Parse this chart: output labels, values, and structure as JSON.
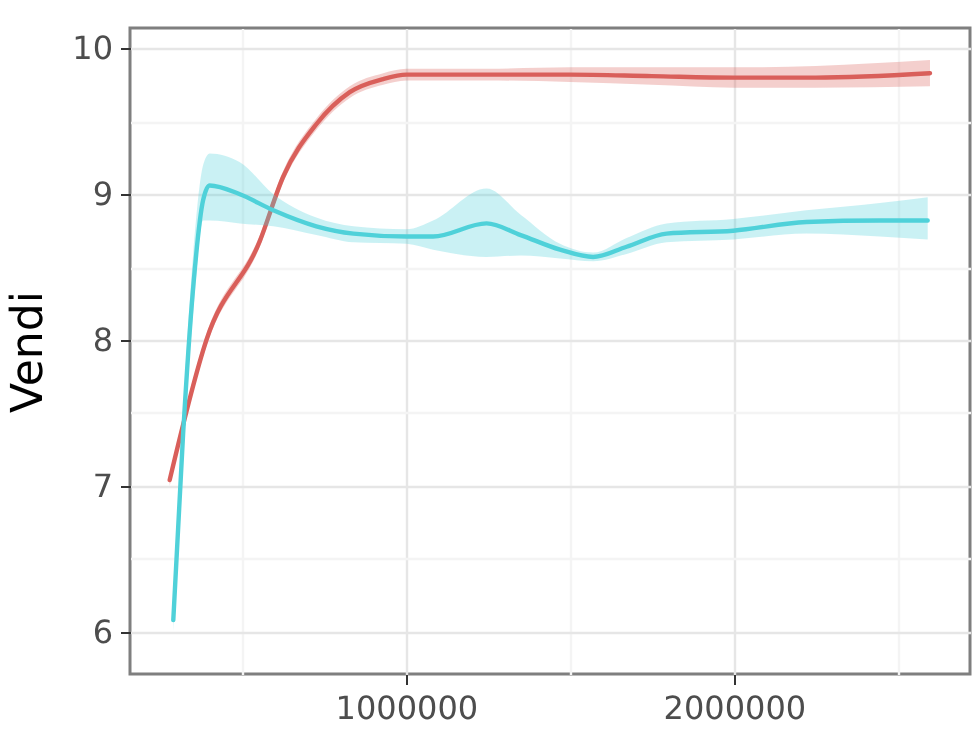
{
  "chart_data": {
    "type": "line",
    "ylabel": "Vendi",
    "xlim": [
      159000,
      2720000
    ],
    "ylim": [
      5.71,
      10.14
    ],
    "xticks": [
      {
        "value": 500000,
        "label": null
      },
      1000000,
      {
        "value": 1500000,
        "label": null
      },
      2000000,
      {
        "value": 2500000,
        "label": null
      }
    ],
    "yticks": [
      6,
      {
        "value": 6.5,
        "label": null
      },
      7,
      {
        "value": 7.5,
        "label": null
      },
      8,
      {
        "value": 8.5,
        "label": null
      },
      9,
      {
        "value": 9.5,
        "label": null
      },
      10
    ],
    "grid": true,
    "line_style": "solid",
    "marker": "none",
    "series": [
      {
        "color": "#d95f5a",
        "x": [
          280000,
          392000,
          555000,
          626000,
          727000,
          829000,
          931000,
          1002000,
          1250000,
          1500000,
          1750000,
          2000000,
          2250000,
          2598000
        ],
        "values": [
          7.04,
          8.0,
          8.68,
          9.12,
          9.48,
          9.7,
          9.79,
          9.82,
          9.82,
          9.82,
          9.81,
          9.8,
          9.8,
          9.83
        ],
        "lower": [
          7.0,
          7.96,
          8.64,
          9.08,
          9.44,
          9.66,
          9.75,
          9.78,
          9.78,
          9.77,
          9.75,
          9.73,
          9.73,
          9.74
        ],
        "upper": [
          7.08,
          8.04,
          8.72,
          9.16,
          9.52,
          9.74,
          9.83,
          9.86,
          9.86,
          9.87,
          9.87,
          9.87,
          9.88,
          9.92
        ]
      },
      {
        "color": "#4fd1d9",
        "x": [
          291000,
          321000,
          352000,
          382000,
          402000,
          494000,
          596000,
          727000,
          840000,
          1002000,
          1083000,
          1246000,
          1350000,
          1470000,
          1571000,
          1673000,
          1795000,
          1998000,
          2221000,
          2445000,
          2591000
        ],
        "values": [
          6.08,
          7.36,
          8.37,
          8.96,
          9.06,
          9.0,
          8.89,
          8.78,
          8.73,
          8.71,
          8.71,
          8.8,
          8.72,
          8.62,
          8.57,
          8.64,
          8.73,
          8.75,
          8.81,
          8.82,
          8.82
        ],
        "lower": [
          6.0,
          7.25,
          8.2,
          8.82,
          8.82,
          8.8,
          8.78,
          8.72,
          8.67,
          8.66,
          8.62,
          8.57,
          8.58,
          8.56,
          8.54,
          8.59,
          8.67,
          8.69,
          8.73,
          8.71,
          8.69
        ],
        "upper": [
          6.16,
          7.5,
          8.6,
          9.2,
          9.28,
          9.22,
          9.0,
          8.84,
          8.78,
          8.76,
          8.82,
          9.04,
          8.86,
          8.66,
          8.6,
          8.7,
          8.8,
          8.83,
          8.89,
          8.94,
          8.98
        ]
      }
    ]
  }
}
